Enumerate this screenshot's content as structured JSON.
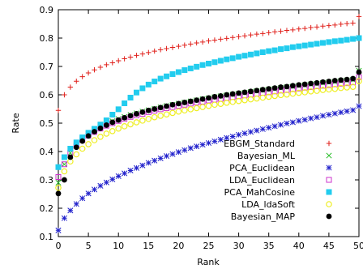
{
  "chart_data": {
    "type": "scatter",
    "xlabel": "Rank",
    "ylabel": "Rate",
    "xlim": [
      0,
      50
    ],
    "ylim": [
      0.1,
      0.9
    ],
    "xticks": [
      0,
      5,
      10,
      15,
      20,
      25,
      30,
      35,
      40,
      45,
      50
    ],
    "yticks": [
      0.1,
      0.2,
      0.3,
      0.4,
      0.5,
      0.6,
      0.7,
      0.8,
      0.9
    ],
    "grid": false,
    "legend_position": "bottom-right",
    "series": [
      {
        "name": "EBGM_Standard",
        "marker": "plus",
        "color": "#e0201b",
        "values": [
          0.545,
          0.6,
          0.627,
          0.648,
          0.664,
          0.677,
          0.688,
          0.697,
          0.706,
          0.713,
          0.72,
          0.727,
          0.733,
          0.739,
          0.744,
          0.749,
          0.754,
          0.759,
          0.763,
          0.767,
          0.771,
          0.775,
          0.779,
          0.783,
          0.786,
          0.79,
          0.793,
          0.796,
          0.799,
          0.802,
          0.805,
          0.808,
          0.811,
          0.814,
          0.816,
          0.819,
          0.822,
          0.824,
          0.827,
          0.829,
          0.832,
          0.834,
          0.837,
          0.839,
          0.842,
          0.844,
          0.846,
          0.849,
          0.851,
          0.853,
          0.876
        ]
      },
      {
        "name": "Bayesian_ML",
        "marker": "x",
        "color": "#22bb22",
        "values": [
          0.29,
          0.355,
          0.395,
          0.425,
          0.445,
          0.462,
          0.476,
          0.488,
          0.498,
          0.507,
          0.515,
          0.522,
          0.529,
          0.535,
          0.541,
          0.546,
          0.551,
          0.556,
          0.561,
          0.565,
          0.569,
          0.573,
          0.577,
          0.581,
          0.585,
          0.588,
          0.592,
          0.595,
          0.598,
          0.601,
          0.604,
          0.607,
          0.61,
          0.613,
          0.616,
          0.619,
          0.621,
          0.624,
          0.627,
          0.629,
          0.632,
          0.634,
          0.637,
          0.639,
          0.642,
          0.644,
          0.646,
          0.649,
          0.651,
          0.653,
          0.685
        ]
      },
      {
        "name": "PCA_Euclidean",
        "marker": "star",
        "color": "#2222cc",
        "values": [
          0.122,
          0.165,
          0.192,
          0.215,
          0.235,
          0.252,
          0.266,
          0.279,
          0.291,
          0.302,
          0.313,
          0.323,
          0.333,
          0.342,
          0.351,
          0.36,
          0.368,
          0.376,
          0.384,
          0.391,
          0.398,
          0.405,
          0.412,
          0.418,
          0.424,
          0.43,
          0.436,
          0.442,
          0.448,
          0.453,
          0.459,
          0.464,
          0.469,
          0.474,
          0.479,
          0.484,
          0.489,
          0.494,
          0.499,
          0.503,
          0.508,
          0.512,
          0.517,
          0.521,
          0.526,
          0.53,
          0.534,
          0.538,
          0.542,
          0.546,
          0.56
        ]
      },
      {
        "name": "LDA_Euclidean",
        "marker": "square-open",
        "color": "#cc33cc",
        "values": [
          0.31,
          0.355,
          0.395,
          0.42,
          0.44,
          0.456,
          0.469,
          0.481,
          0.491,
          0.5,
          0.508,
          0.515,
          0.522,
          0.528,
          0.533,
          0.539,
          0.544,
          0.549,
          0.553,
          0.557,
          0.561,
          0.565,
          0.569,
          0.573,
          0.576,
          0.58,
          0.583,
          0.586,
          0.589,
          0.592,
          0.595,
          0.598,
          0.601,
          0.604,
          0.607,
          0.609,
          0.612,
          0.615,
          0.617,
          0.62,
          0.622,
          0.625,
          0.627,
          0.63,
          0.632,
          0.634,
          0.637,
          0.639,
          0.641,
          0.644,
          0.662
        ]
      },
      {
        "name": "PCA_MahCosine",
        "marker": "square-filled",
        "color": "#22ccee",
        "values": [
          0.345,
          0.38,
          0.41,
          0.432,
          0.45,
          0.466,
          0.48,
          0.495,
          0.51,
          0.53,
          0.549,
          0.57,
          0.59,
          0.608,
          0.623,
          0.636,
          0.647,
          0.657,
          0.665,
          0.673,
          0.68,
          0.687,
          0.693,
          0.699,
          0.705,
          0.71,
          0.715,
          0.72,
          0.725,
          0.729,
          0.734,
          0.738,
          0.742,
          0.746,
          0.75,
          0.754,
          0.757,
          0.761,
          0.764,
          0.768,
          0.771,
          0.774,
          0.777,
          0.78,
          0.783,
          0.786,
          0.789,
          0.791,
          0.794,
          0.797,
          0.8
        ]
      },
      {
        "name": "LDA_ldaSoft",
        "marker": "circle-open",
        "color": "#eeee22",
        "values": [
          0.272,
          0.33,
          0.365,
          0.39,
          0.41,
          0.426,
          0.44,
          0.452,
          0.463,
          0.472,
          0.481,
          0.489,
          0.496,
          0.503,
          0.509,
          0.515,
          0.521,
          0.526,
          0.531,
          0.536,
          0.541,
          0.545,
          0.549,
          0.553,
          0.557,
          0.561,
          0.565,
          0.568,
          0.572,
          0.575,
          0.578,
          0.581,
          0.584,
          0.587,
          0.59,
          0.593,
          0.596,
          0.599,
          0.601,
          0.604,
          0.607,
          0.609,
          0.612,
          0.614,
          0.617,
          0.619,
          0.621,
          0.624,
          0.626,
          0.628,
          0.648
        ]
      },
      {
        "name": "Bayesian_MAP",
        "marker": "circle-filled",
        "color": "#000000",
        "values": [
          0.252,
          0.3,
          0.38,
          0.415,
          0.437,
          0.455,
          0.47,
          0.482,
          0.493,
          0.503,
          0.511,
          0.519,
          0.526,
          0.533,
          0.539,
          0.545,
          0.55,
          0.555,
          0.56,
          0.565,
          0.569,
          0.573,
          0.577,
          0.581,
          0.585,
          0.589,
          0.593,
          0.596,
          0.6,
          0.603,
          0.606,
          0.609,
          0.612,
          0.615,
          0.618,
          0.621,
          0.624,
          0.627,
          0.629,
          0.632,
          0.635,
          0.637,
          0.64,
          0.642,
          0.645,
          0.647,
          0.65,
          0.652,
          0.654,
          0.657,
          0.68
        ]
      }
    ]
  }
}
